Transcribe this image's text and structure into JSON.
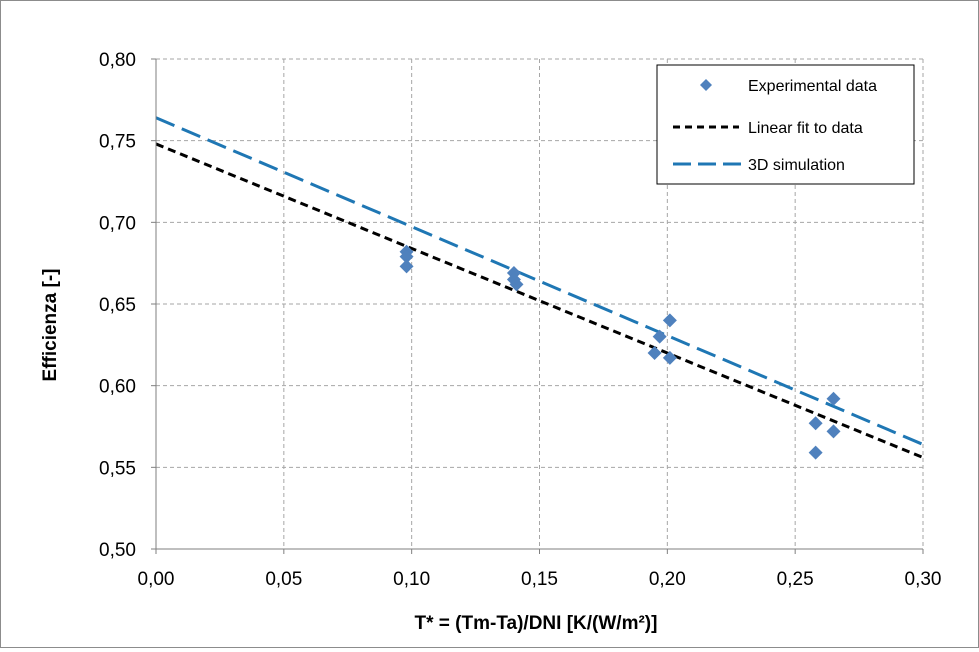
{
  "chart_data": {
    "type": "scatter",
    "xlabel": "T* = (Tm-Ta)/DNI   [K/(W/m²)]",
    "ylabel": "Efficienza   [-]",
    "xlim": [
      0.0,
      0.3
    ],
    "ylim": [
      0.5,
      0.8
    ],
    "x_ticks": [
      0.0,
      0.05,
      0.1,
      0.15,
      0.2,
      0.25,
      0.3
    ],
    "y_ticks": [
      0.5,
      0.55,
      0.6,
      0.65,
      0.7,
      0.75,
      0.8
    ],
    "x_tick_labels": [
      "0,00",
      "0,05",
      "0,10",
      "0,15",
      "0,20",
      "0,25",
      "0,30"
    ],
    "y_tick_labels": [
      "0,50",
      "0,55",
      "0,60",
      "0,65",
      "0,70",
      "0,75",
      "0,80"
    ],
    "grid": true,
    "legend_position": "top-right",
    "series": [
      {
        "name": "Experimental data",
        "kind": "scatter",
        "marker": "diamond",
        "color": "#4f81bd",
        "points": [
          [
            0.098,
            0.682
          ],
          [
            0.098,
            0.679
          ],
          [
            0.098,
            0.673
          ],
          [
            0.14,
            0.669
          ],
          [
            0.14,
            0.665
          ],
          [
            0.141,
            0.662
          ],
          [
            0.195,
            0.62
          ],
          [
            0.197,
            0.63
          ],
          [
            0.201,
            0.64
          ],
          [
            0.201,
            0.617
          ],
          [
            0.258,
            0.577
          ],
          [
            0.258,
            0.559
          ],
          [
            0.265,
            0.592
          ],
          [
            0.265,
            0.572
          ]
        ]
      },
      {
        "name": "Linear fit to data",
        "kind": "line",
        "style": "short-dash",
        "color": "#000000",
        "points": [
          [
            0.0,
            0.748
          ],
          [
            0.3,
            0.556
          ]
        ]
      },
      {
        "name": "3D simulation",
        "kind": "line",
        "style": "long-dash",
        "color": "#1f77b4",
        "points": [
          [
            0.0,
            0.764
          ],
          [
            0.3,
            0.564
          ]
        ]
      }
    ]
  }
}
